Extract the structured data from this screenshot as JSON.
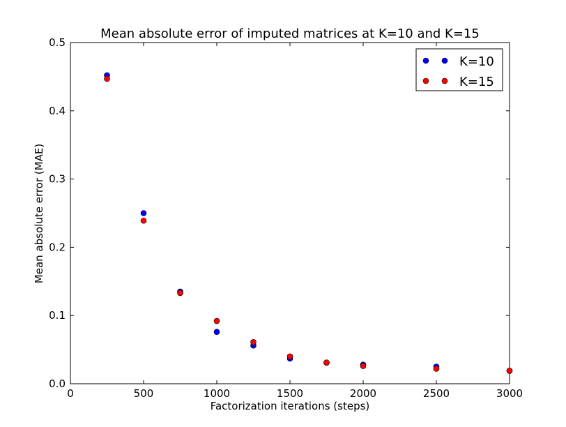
{
  "chart_data": {
    "type": "scatter",
    "title": "Mean absolute error of imputed matrices at K=10 and K=15",
    "xlabel": "Factorization iterations (steps)",
    "ylabel": "Mean absolute error (MAE)",
    "xlim": [
      0,
      3000
    ],
    "ylim": [
      0,
      0.5
    ],
    "xticks": [
      0,
      500,
      1000,
      1500,
      2000,
      2500,
      3000
    ],
    "yticks": [
      0.0,
      0.1,
      0.2,
      0.3,
      0.4,
      0.5
    ],
    "xtick_labels": [
      "0",
      "500",
      "1000",
      "1500",
      "2000",
      "2500",
      "3000"
    ],
    "ytick_labels": [
      "0.0",
      "0.1",
      "0.2",
      "0.3",
      "0.4",
      "0.5"
    ],
    "grid": false,
    "legend_position": "top-right",
    "series": [
      {
        "name": "K=10",
        "color": "#0000ff",
        "x": [
          250,
          500,
          750,
          1000,
          1250,
          1500,
          1750,
          2000,
          2500,
          3000
        ],
        "y": [
          0.452,
          0.25,
          0.135,
          0.076,
          0.056,
          0.037,
          0.031,
          0.028,
          0.025,
          0.019
        ]
      },
      {
        "name": "K=15",
        "color": "#ff0000",
        "x": [
          250,
          500,
          750,
          1000,
          1250,
          1500,
          1750,
          2000,
          2500,
          3000
        ],
        "y": [
          0.447,
          0.239,
          0.133,
          0.092,
          0.061,
          0.04,
          0.031,
          0.026,
          0.022,
          0.019
        ]
      }
    ]
  }
}
